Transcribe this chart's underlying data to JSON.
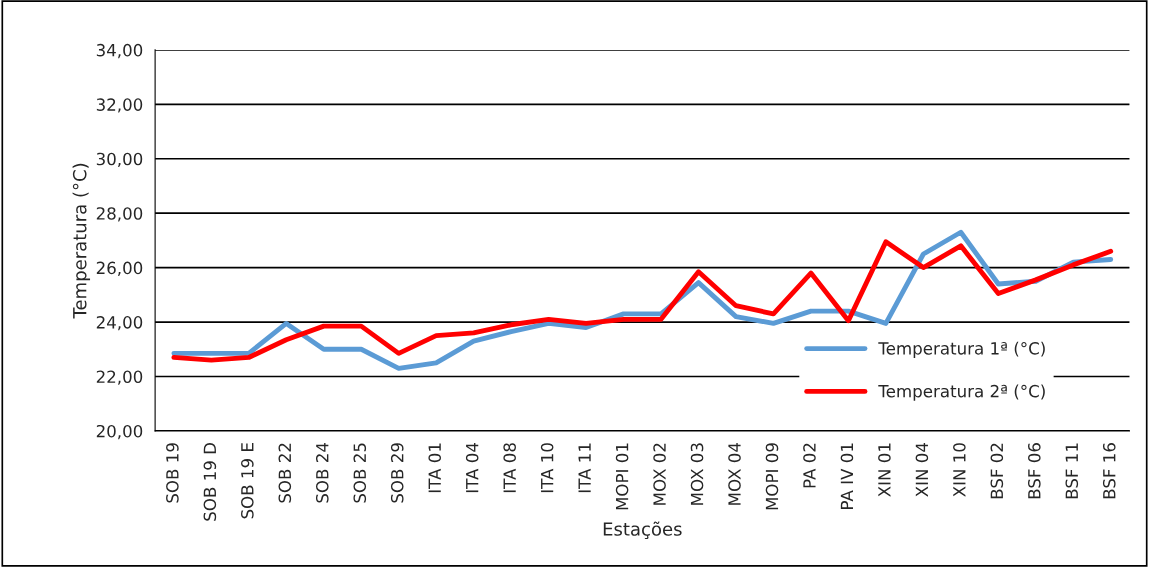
{
  "chart_data": {
    "type": "line",
    "xlabel": "Estações",
    "ylabel": "Temperatura (°C)",
    "categories": [
      "SOB 19",
      "SOB 19 D",
      "SOB 19 E",
      "SOB 22",
      "SOB 24",
      "SOB 25",
      "SOB 29",
      "ITA 01",
      "ITA 04",
      "ITA 08",
      "ITA 10",
      "ITA 11",
      "MOPI 01",
      "MOX 02",
      "MOX 03",
      "MOX 04",
      "MOPI 09",
      "PA 02",
      "PA IV 01",
      "XIN 01",
      "XIN 04",
      "XIN 10",
      "BSF 02",
      "BSF 06",
      "BSF 11",
      "BSF 16"
    ],
    "series": [
      {
        "name": "Temperatura 1ª (°C)",
        "color": "#5b9bd5",
        "values": [
          22.85,
          22.85,
          22.85,
          23.95,
          23.0,
          23.0,
          22.3,
          22.5,
          23.3,
          23.65,
          23.95,
          23.8,
          24.3,
          24.3,
          25.45,
          24.2,
          23.95,
          24.4,
          24.4,
          23.95,
          26.5,
          27.3,
          25.4,
          25.5,
          26.2,
          26.3
        ]
      },
      {
        "name": "Temperatura 2ª (°C)",
        "color": "#ff0000",
        "values": [
          22.7,
          22.6,
          22.7,
          23.35,
          23.85,
          23.85,
          22.85,
          23.5,
          23.6,
          23.9,
          24.1,
          23.95,
          24.1,
          24.1,
          25.85,
          24.6,
          24.3,
          25.8,
          24.05,
          26.95,
          26.0,
          26.8,
          25.05,
          25.55,
          26.1,
          26.6
        ]
      }
    ],
    "ylim": [
      20,
      34
    ],
    "yticks": [
      {
        "value": 20,
        "label": "20,00"
      },
      {
        "value": 22,
        "label": "22,00"
      },
      {
        "value": 24,
        "label": "24,00"
      },
      {
        "value": 26,
        "label": "26,00"
      },
      {
        "value": 28,
        "label": "28,00"
      },
      {
        "value": 30,
        "label": "30,00"
      },
      {
        "value": 32,
        "label": "32,00"
      },
      {
        "value": 34,
        "label": "34,00"
      }
    ],
    "grid": "y",
    "legend": "lower right",
    "marker": "none",
    "line_style": "solid"
  }
}
